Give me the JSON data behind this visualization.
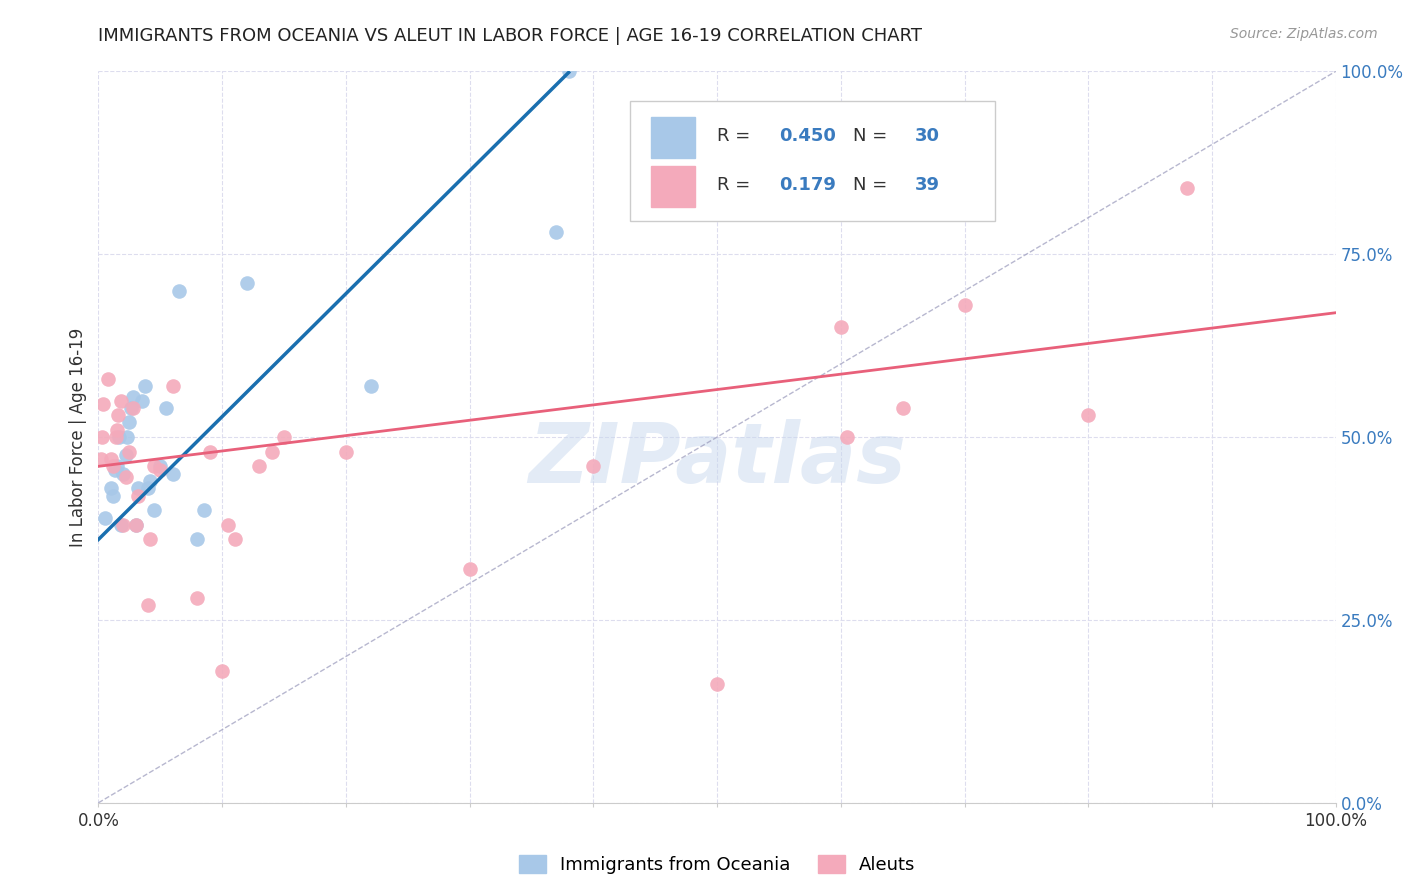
{
  "title": "IMMIGRANTS FROM OCEANIA VS ALEUT IN LABOR FORCE | AGE 16-19 CORRELATION CHART",
  "source": "Source: ZipAtlas.com",
  "ylabel": "In Labor Force | Age 16-19",
  "legend_label1": "Immigrants from Oceania",
  "legend_label2": "Aleuts",
  "R1": 0.45,
  "N1": 30,
  "R2": 0.179,
  "N2": 39,
  "color_blue": "#a8c8e8",
  "color_pink": "#f4aabb",
  "color_blue_line": "#1a6faf",
  "color_pink_line": "#e8607a",
  "color_dash": "#aaaacc",
  "watermark": "ZIPatlas",
  "ytick_labels": [
    "0.0%",
    "25.0%",
    "50.0%",
    "75.0%",
    "100.0%"
  ],
  "ytick_values": [
    0.0,
    0.25,
    0.5,
    0.75,
    1.0
  ],
  "blue_x": [
    0.005,
    0.01,
    0.012,
    0.013,
    0.015,
    0.017,
    0.018,
    0.02,
    0.022,
    0.023,
    0.025,
    0.026,
    0.028,
    0.03,
    0.032,
    0.035,
    0.038,
    0.04,
    0.042,
    0.045,
    0.05,
    0.055,
    0.06,
    0.065,
    0.08,
    0.085,
    0.12,
    0.22,
    0.37,
    0.38
  ],
  "blue_y": [
    0.39,
    0.43,
    0.42,
    0.455,
    0.46,
    0.5,
    0.38,
    0.45,
    0.475,
    0.5,
    0.52,
    0.54,
    0.555,
    0.38,
    0.43,
    0.55,
    0.57,
    0.43,
    0.44,
    0.4,
    0.46,
    0.54,
    0.45,
    0.7,
    0.36,
    0.4,
    0.71,
    0.57,
    0.78,
    1.0
  ],
  "pink_x": [
    0.002,
    0.003,
    0.004,
    0.008,
    0.01,
    0.012,
    0.014,
    0.015,
    0.016,
    0.018,
    0.02,
    0.022,
    0.025,
    0.028,
    0.03,
    0.032,
    0.04,
    0.042,
    0.045,
    0.05,
    0.06,
    0.08,
    0.09,
    0.1,
    0.105,
    0.11,
    0.13,
    0.14,
    0.15,
    0.2,
    0.3,
    0.4,
    0.5,
    0.6,
    0.605,
    0.65,
    0.7,
    0.8,
    0.88
  ],
  "pink_y": [
    0.47,
    0.5,
    0.545,
    0.58,
    0.47,
    0.46,
    0.5,
    0.51,
    0.53,
    0.55,
    0.38,
    0.445,
    0.48,
    0.54,
    0.38,
    0.42,
    0.27,
    0.36,
    0.46,
    0.455,
    0.57,
    0.28,
    0.48,
    0.18,
    0.38,
    0.36,
    0.46,
    0.48,
    0.5,
    0.48,
    0.32,
    0.46,
    0.163,
    0.65,
    0.5,
    0.54,
    0.68,
    0.53,
    0.84
  ],
  "xlim": [
    0.0,
    1.0
  ],
  "ylim": [
    0.0,
    1.0
  ],
  "blue_line_x": [
    0.0,
    0.38
  ],
  "blue_line_y_intercept": 0.36,
  "blue_line_slope": 1.68,
  "pink_line_x": [
    0.0,
    1.0
  ],
  "pink_line_y_intercept": 0.46,
  "pink_line_slope": 0.21,
  "dash_line_x": [
    0.0,
    1.0
  ],
  "dash_line_y_intercept": 0.0,
  "dash_line_slope": 1.0
}
